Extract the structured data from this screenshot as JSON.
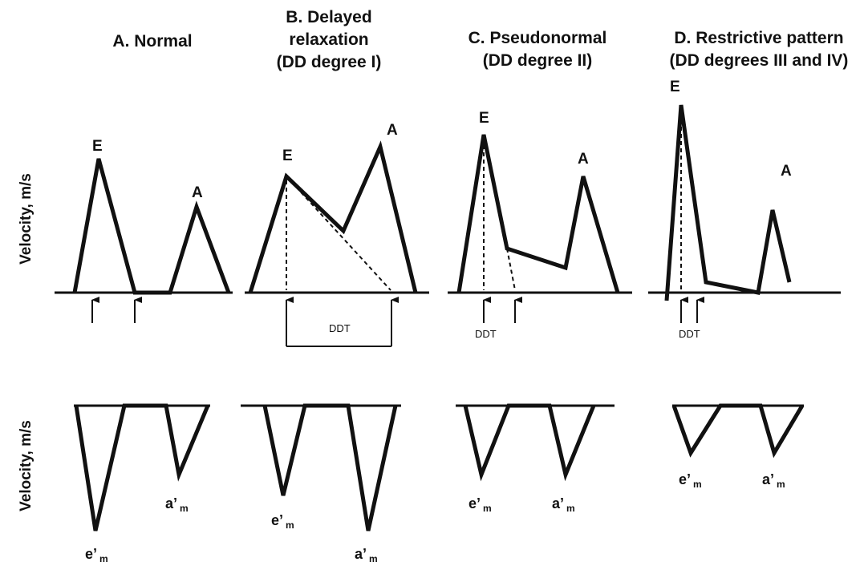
{
  "panels": [
    {
      "title_line1": "A. Normal",
      "title_line2": "",
      "title_line3": "",
      "peak_e": "E",
      "peak_a": "A",
      "tdi_e": "e’",
      "tdi_a": "a’",
      "ddt": ""
    },
    {
      "title_line1": "B. Delayed",
      "title_line2": "relaxation",
      "title_line3": "(DD degree I)",
      "peak_e": "E",
      "peak_a": "A",
      "tdi_e": "e’",
      "tdi_a": "a’",
      "ddt": "DDT"
    },
    {
      "title_line1": "C. Pseudonormal",
      "title_line2": "(DD degree II)",
      "title_line3": "",
      "peak_e": "E",
      "peak_a": "A",
      "tdi_e": "e’",
      "tdi_a": "a’",
      "ddt": "DDT"
    },
    {
      "title_line1": "D. Restrictive pattern",
      "title_line2": "(DD degrees III and IV)",
      "title_line3": "",
      "peak_e": "E",
      "peak_a": "A",
      "tdi_e": "e’",
      "tdi_a": "a’",
      "ddt": "DDT"
    }
  ],
  "tdi_subscript": "m",
  "y_axis_top": "Velocity, m/s",
  "y_axis_bottom": "Velocity, m/s",
  "colors": {
    "line": "#111111",
    "background": "#ffffff"
  }
}
